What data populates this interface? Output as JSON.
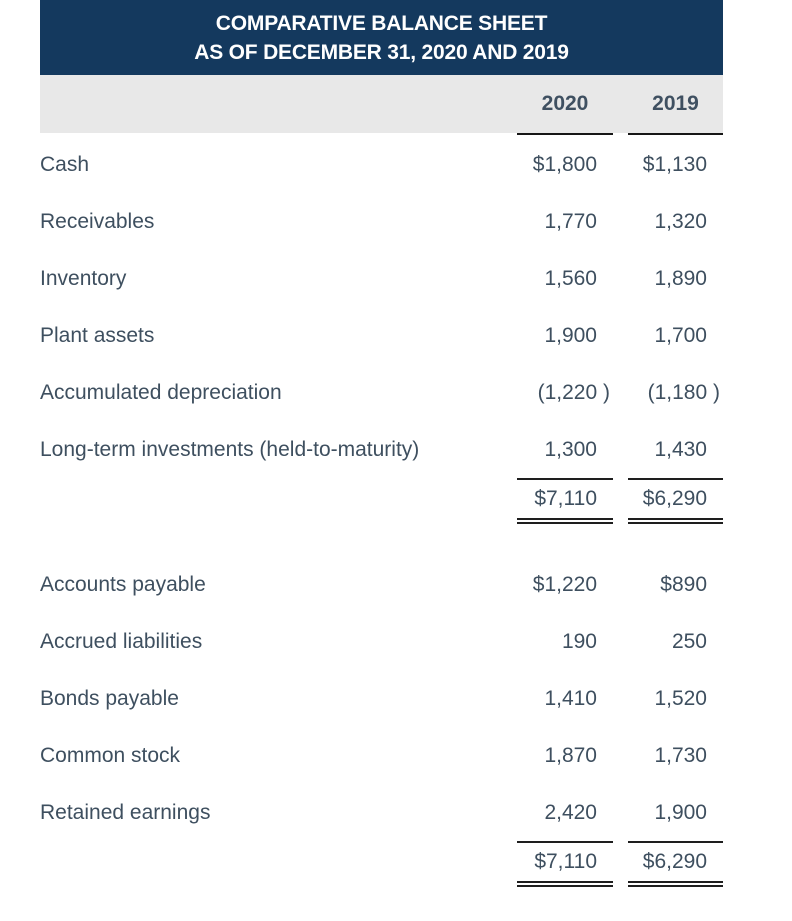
{
  "title": {
    "line1": "COMPARATIVE BALANCE SHEET",
    "line2": "AS OF DECEMBER 31, 2020 AND 2019"
  },
  "columns": {
    "col1": "2020",
    "col2": "2019"
  },
  "colors": {
    "title_band_bg": "#14395E",
    "title_text": "#FFFFFF",
    "column_header_bg": "#E8E8E8",
    "body_text": "#3E4F5F",
    "rule": "#1E1E1E"
  },
  "assets": {
    "rows": [
      {
        "label": "Cash",
        "v2020": "$1,800",
        "v2019": "$1,130"
      },
      {
        "label": "Receivables",
        "v2020": "1,770",
        "v2019": "1,320"
      },
      {
        "label": "Inventory",
        "v2020": "1,560",
        "v2019": "1,890"
      },
      {
        "label": "Plant assets",
        "v2020": "1,900",
        "v2019": "1,700"
      },
      {
        "label": "Accumulated depreciation",
        "v2020": "(1,220 )",
        "v2019": "(1,180 )"
      },
      {
        "label": "Long-term investments (held-to-maturity)",
        "v2020": "1,300",
        "v2019": "1,430"
      }
    ],
    "total": {
      "v2020": "$7,110",
      "v2019": "$6,290"
    }
  },
  "liabilities_equity": {
    "rows": [
      {
        "label": "Accounts payable",
        "v2020": "$1,220",
        "v2019": "$890"
      },
      {
        "label": "Accrued liabilities",
        "v2020": "190",
        "v2019": "250"
      },
      {
        "label": "Bonds payable",
        "v2020": "1,410",
        "v2019": "1,520"
      },
      {
        "label": "Common stock",
        "v2020": "1,870",
        "v2019": "1,730"
      },
      {
        "label": "Retained earnings",
        "v2020": "2,420",
        "v2019": "1,900"
      }
    ],
    "total": {
      "v2020": "$7,110",
      "v2019": "$6,290"
    }
  }
}
